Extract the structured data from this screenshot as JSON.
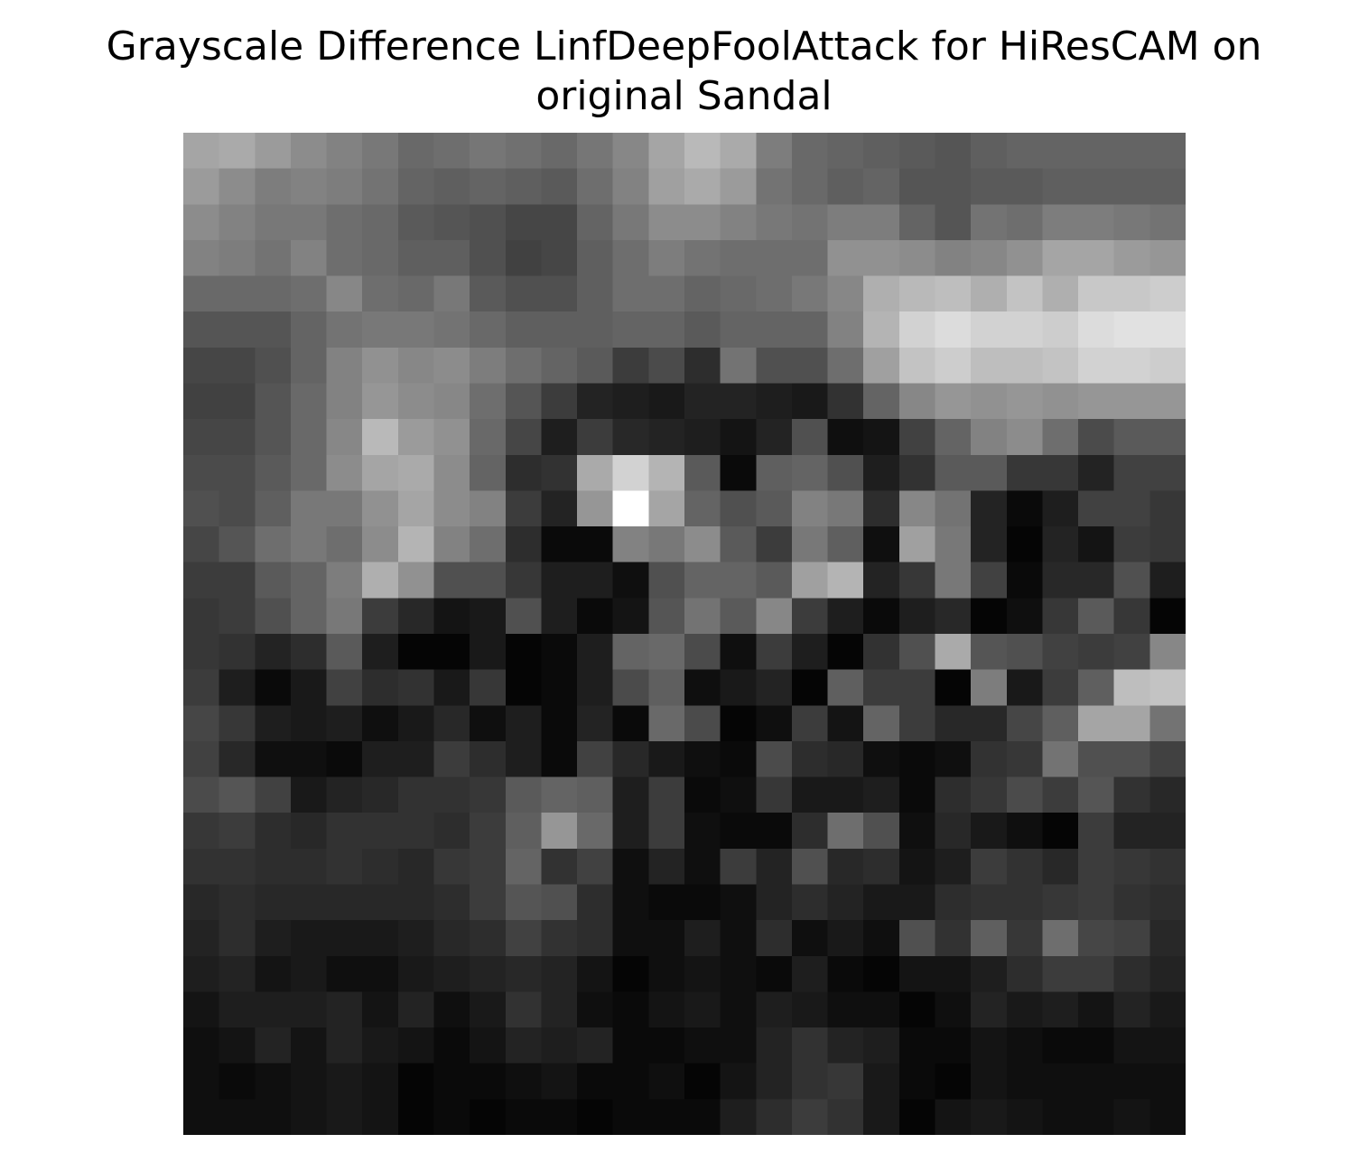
{
  "chart_data": {
    "type": "heatmap",
    "title": "Grayscale Difference LinfDeepFoolAttack for HiResCAM on original Sandal",
    "title_lines": [
      "Grayscale Difference LinfDeepFoolAttack for HiResCAM on",
      "original Sandal"
    ],
    "colormap": "gray",
    "value_range": [
      0,
      255
    ],
    "rows": 28,
    "cols": 28,
    "axes_visible": false,
    "values": [
      [
        165,
        170,
        155,
        140,
        130,
        120,
        105,
        110,
        118,
        112,
        105,
        118,
        135,
        165,
        185,
        170,
        125,
        105,
        100,
        95,
        90,
        85,
        95,
        100,
        100,
        100,
        100,
        100
      ],
      [
        155,
        140,
        125,
        130,
        125,
        115,
        100,
        95,
        100,
        95,
        90,
        110,
        130,
        160,
        170,
        155,
        115,
        105,
        95,
        100,
        85,
        85,
        90,
        90,
        95,
        95,
        95,
        95
      ],
      [
        140,
        130,
        120,
        120,
        110,
        105,
        90,
        85,
        80,
        70,
        70,
        100,
        120,
        140,
        140,
        130,
        120,
        115,
        125,
        125,
        100,
        85,
        115,
        110,
        125,
        125,
        120,
        115
      ],
      [
        130,
        125,
        115,
        130,
        110,
        105,
        95,
        95,
        80,
        65,
        70,
        95,
        110,
        125,
        115,
        110,
        110,
        110,
        145,
        145,
        140,
        130,
        135,
        145,
        165,
        165,
        155,
        150
      ],
      [
        105,
        105,
        105,
        110,
        135,
        110,
        105,
        120,
        90,
        80,
        80,
        95,
        110,
        110,
        100,
        105,
        110,
        120,
        135,
        175,
        185,
        190,
        175,
        195,
        175,
        200,
        200,
        205
      ],
      [
        85,
        85,
        85,
        100,
        115,
        120,
        120,
        115,
        105,
        95,
        95,
        95,
        100,
        100,
        90,
        100,
        100,
        100,
        130,
        180,
        210,
        220,
        210,
        210,
        205,
        220,
        225,
        225
      ],
      [
        70,
        70,
        80,
        100,
        130,
        145,
        135,
        140,
        125,
        110,
        100,
        90,
        60,
        75,
        45,
        115,
        80,
        80,
        110,
        160,
        195,
        205,
        190,
        190,
        195,
        210,
        210,
        205
      ],
      [
        65,
        65,
        85,
        105,
        130,
        150,
        140,
        135,
        110,
        85,
        60,
        35,
        30,
        25,
        35,
        35,
        30,
        25,
        50,
        100,
        135,
        150,
        145,
        150,
        145,
        150,
        150,
        150
      ],
      [
        70,
        70,
        85,
        105,
        135,
        185,
        155,
        145,
        105,
        70,
        30,
        60,
        40,
        35,
        30,
        20,
        35,
        80,
        15,
        20,
        65,
        100,
        130,
        140,
        110,
        75,
        90,
        90
      ],
      [
        75,
        75,
        90,
        105,
        140,
        165,
        170,
        140,
        100,
        45,
        50,
        170,
        210,
        180,
        90,
        10,
        95,
        100,
        80,
        30,
        50,
        90,
        90,
        55,
        55,
        35,
        65,
        65
      ],
      [
        80,
        75,
        95,
        120,
        120,
        145,
        165,
        140,
        130,
        60,
        35,
        150,
        255,
        165,
        100,
        80,
        90,
        130,
        120,
        45,
        135,
        115,
        35,
        10,
        30,
        65,
        65,
        55
      ],
      [
        70,
        85,
        110,
        120,
        110,
        140,
        180,
        130,
        110,
        45,
        10,
        10,
        130,
        120,
        140,
        90,
        60,
        120,
        95,
        15,
        160,
        120,
        35,
        5,
        35,
        20,
        60,
        55
      ],
      [
        60,
        60,
        90,
        100,
        125,
        175,
        145,
        80,
        80,
        55,
        30,
        30,
        15,
        80,
        100,
        100,
        90,
        160,
        180,
        35,
        55,
        120,
        65,
        10,
        40,
        40,
        80,
        30
      ],
      [
        55,
        60,
        80,
        100,
        120,
        60,
        40,
        20,
        25,
        80,
        30,
        10,
        20,
        85,
        115,
        90,
        135,
        60,
        30,
        10,
        30,
        40,
        5,
        15,
        55,
        90,
        55,
        5
      ],
      [
        55,
        50,
        35,
        45,
        90,
        30,
        5,
        5,
        25,
        5,
        10,
        30,
        100,
        105,
        75,
        15,
        60,
        30,
        5,
        50,
        80,
        170,
        85,
        80,
        65,
        60,
        65,
        135
      ],
      [
        60,
        30,
        10,
        25,
        65,
        45,
        50,
        25,
        55,
        5,
        10,
        30,
        75,
        95,
        15,
        25,
        35,
        5,
        95,
        60,
        60,
        5,
        125,
        25,
        60,
        95,
        190,
        195
      ],
      [
        70,
        55,
        30,
        25,
        30,
        15,
        25,
        40,
        15,
        30,
        10,
        35,
        10,
        105,
        75,
        5,
        15,
        60,
        20,
        100,
        60,
        40,
        40,
        70,
        95,
        165,
        165,
        115
      ],
      [
        65,
        40,
        15,
        15,
        10,
        30,
        30,
        60,
        45,
        30,
        10,
        65,
        40,
        25,
        15,
        10,
        75,
        45,
        40,
        15,
        10,
        15,
        50,
        55,
        115,
        80,
        80,
        65
      ],
      [
        75,
        85,
        65,
        25,
        35,
        40,
        50,
        50,
        55,
        90,
        100,
        95,
        30,
        60,
        10,
        15,
        55,
        25,
        25,
        30,
        10,
        45,
        55,
        75,
        60,
        85,
        50,
        40
      ],
      [
        55,
        60,
        45,
        40,
        50,
        50,
        50,
        45,
        60,
        95,
        150,
        105,
        30,
        60,
        15,
        10,
        10,
        45,
        110,
        80,
        15,
        40,
        25,
        15,
        5,
        60,
        35,
        35
      ],
      [
        50,
        50,
        45,
        45,
        50,
        45,
        40,
        55,
        60,
        100,
        50,
        65,
        15,
        35,
        15,
        60,
        35,
        80,
        40,
        45,
        20,
        30,
        60,
        50,
        40,
        60,
        55,
        50
      ],
      [
        40,
        45,
        40,
        40,
        40,
        40,
        40,
        45,
        60,
        85,
        80,
        45,
        15,
        10,
        10,
        15,
        35,
        45,
        35,
        25,
        25,
        45,
        50,
        50,
        55,
        60,
        50,
        45
      ],
      [
        35,
        45,
        30,
        25,
        25,
        25,
        30,
        40,
        45,
        65,
        50,
        45,
        15,
        15,
        30,
        15,
        45,
        15,
        25,
        15,
        80,
        50,
        95,
        55,
        110,
        70,
        65,
        40
      ],
      [
        30,
        35,
        20,
        25,
        15,
        15,
        25,
        30,
        35,
        40,
        35,
        20,
        5,
        15,
        20,
        15,
        10,
        30,
        10,
        5,
        20,
        20,
        30,
        45,
        60,
        60,
        45,
        35
      ],
      [
        20,
        30,
        30,
        30,
        35,
        20,
        35,
        15,
        25,
        50,
        35,
        15,
        10,
        20,
        25,
        15,
        30,
        25,
        15,
        15,
        5,
        15,
        35,
        25,
        30,
        20,
        35,
        25
      ],
      [
        15,
        20,
        35,
        20,
        35,
        25,
        20,
        10,
        20,
        35,
        30,
        35,
        10,
        10,
        15,
        15,
        35,
        50,
        35,
        30,
        10,
        10,
        20,
        15,
        10,
        10,
        20,
        20
      ],
      [
        15,
        10,
        15,
        20,
        25,
        20,
        5,
        10,
        10,
        15,
        20,
        10,
        10,
        15,
        5,
        20,
        35,
        50,
        55,
        25,
        10,
        5,
        20,
        15,
        15,
        15,
        15,
        15
      ],
      [
        15,
        15,
        15,
        20,
        25,
        20,
        5,
        10,
        5,
        10,
        10,
        5,
        10,
        10,
        10,
        30,
        45,
        60,
        50,
        25,
        5,
        20,
        25,
        20,
        15,
        15,
        20,
        15
      ]
    ]
  }
}
